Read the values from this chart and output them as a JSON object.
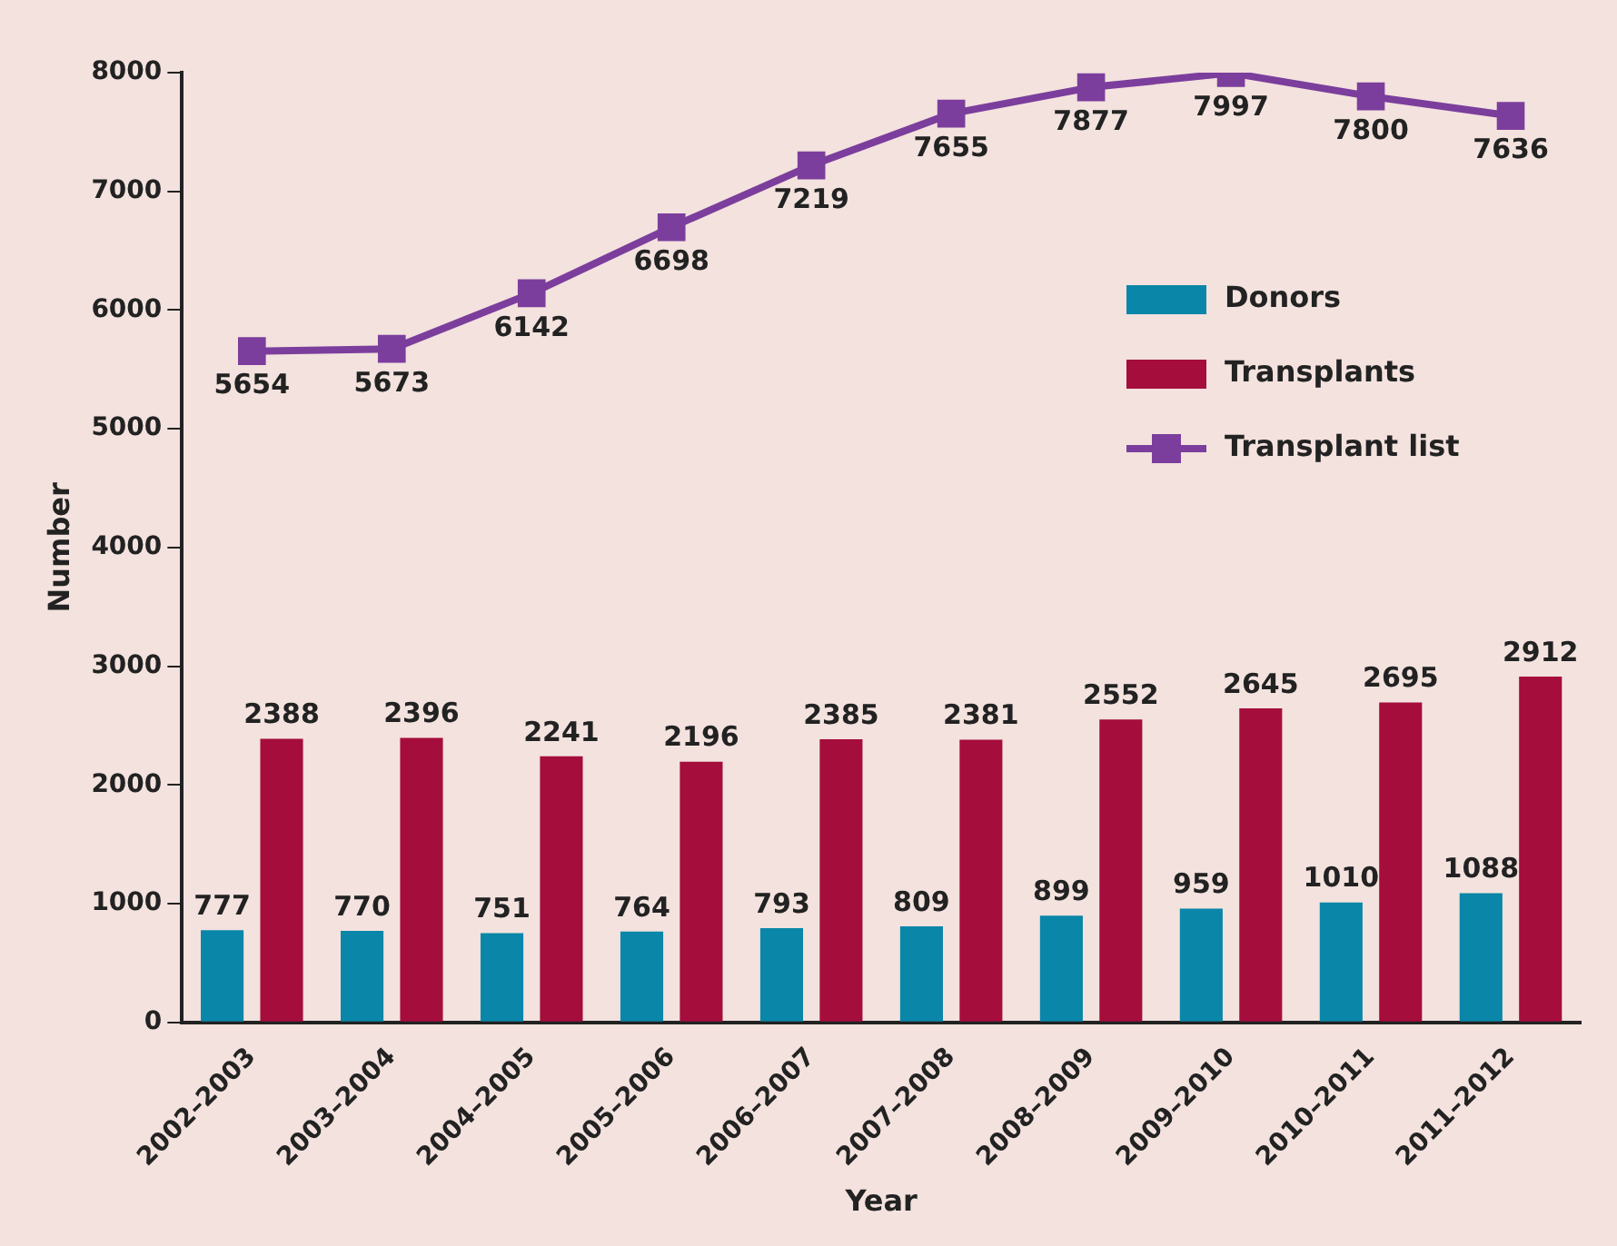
{
  "chart_data": {
    "type": "bar",
    "xlabel": "Year",
    "ylabel": "Number",
    "categories": [
      "2002–2003",
      "2003–2004",
      "2004–2005",
      "2005–2006",
      "2006–2007",
      "2007–2008",
      "2008–2009",
      "2009–2010",
      "2010–2011",
      "2011–2012"
    ],
    "series": [
      {
        "name": "Donors",
        "color": "#0a86a8",
        "values": [
          777,
          770,
          751,
          764,
          793,
          809,
          899,
          959,
          1010,
          1088
        ]
      },
      {
        "name": "Transplants",
        "color": "#a50d3c",
        "values": [
          2388,
          2396,
          2241,
          2196,
          2385,
          2381,
          2552,
          2645,
          2695,
          2912
        ]
      },
      {
        "name": "Transplant list",
        "type": "line",
        "color": "#7c3e9c",
        "marker": "square",
        "values": [
          5654,
          5673,
          6142,
          6698,
          7219,
          7655,
          7877,
          7997,
          7800,
          7636
        ]
      }
    ],
    "ylim": [
      0,
      8000
    ],
    "yticks": [
      0,
      1000,
      2000,
      3000,
      4000,
      5000,
      6000,
      7000,
      8000
    ],
    "grid": false,
    "legend": "right",
    "data_labels": true
  }
}
